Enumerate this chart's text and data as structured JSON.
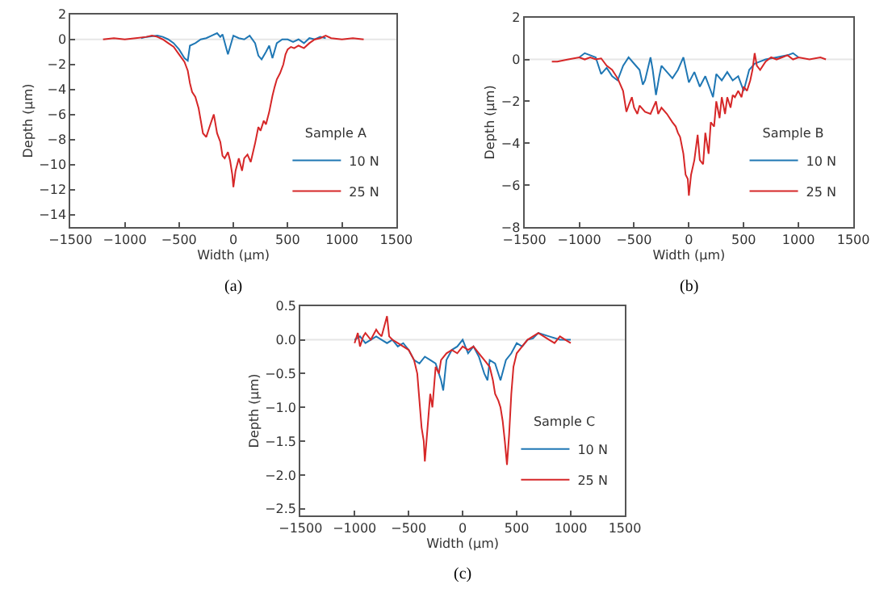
{
  "chart_data": [
    {
      "type": "line",
      "xlabel": "Width (μm)",
      "ylabel": "Depth (μm)",
      "legend_title": "Sample A",
      "legend": "bottom right",
      "grid": false,
      "marker": "none",
      "line_style": "solid",
      "xlim": [
        -1500,
        1500
      ],
      "xticks": [
        -1500,
        -1000,
        -500,
        0,
        500,
        1000,
        1500
      ],
      "ylim": [
        -15,
        2
      ],
      "yticks": [
        -14,
        -12,
        -10,
        -8,
        -6,
        -4,
        -2,
        0,
        2
      ],
      "ref_lines": [
        {
          "axis": "y",
          "value": 0,
          "label": null,
          "color": "#e6e6e6"
        }
      ],
      "annotations": [
        "(a)"
      ],
      "series": [
        {
          "name": "10 N",
          "color": "#1f77b4",
          "x": [
            -850,
            -800,
            -700,
            -650,
            -600,
            -550,
            -500,
            -450,
            -420,
            -400,
            -350,
            -300,
            -250,
            -200,
            -150,
            -120,
            -100,
            -50,
            0,
            50,
            100,
            150,
            200,
            230,
            260,
            300,
            330,
            360,
            400,
            450,
            500,
            550,
            600,
            650,
            700,
            750,
            800,
            850
          ],
          "values": [
            0.1,
            0.2,
            0.3,
            0.2,
            0,
            -0.3,
            -0.8,
            -1.5,
            -1.7,
            -0.5,
            -0.3,
            0,
            0.1,
            0.3,
            0.5,
            0.2,
            0.4,
            -1.2,
            0.3,
            0.1,
            0,
            0.3,
            -0.3,
            -1.3,
            -1.6,
            -1,
            -0.5,
            -1.5,
            -0.3,
            0,
            0,
            -0.2,
            0,
            -0.3,
            0.1,
            0,
            0.2,
            0.1
          ]
        },
        {
          "name": "25 N",
          "color": "#d62728",
          "x": [
            -1200,
            -1100,
            -1000,
            -900,
            -800,
            -750,
            -700,
            -650,
            -600,
            -550,
            -500,
            -450,
            -420,
            -400,
            -380,
            -350,
            -320,
            -300,
            -280,
            -250,
            -220,
            -200,
            -180,
            -150,
            -120,
            -100,
            -80,
            -50,
            -30,
            -10,
            0,
            20,
            50,
            80,
            100,
            130,
            160,
            200,
            230,
            250,
            280,
            300,
            330,
            360,
            380,
            400,
            430,
            460,
            480,
            500,
            530,
            560,
            600,
            650,
            700,
            750,
            800,
            850,
            900,
            1000,
            1100,
            1200
          ],
          "values": [
            0,
            0.1,
            0,
            0.1,
            0.2,
            0.3,
            0.2,
            0,
            -0.3,
            -0.6,
            -1.2,
            -1.8,
            -2.5,
            -3.5,
            -4.2,
            -4.6,
            -5.5,
            -6.5,
            -7.5,
            -7.8,
            -7,
            -6.5,
            -6,
            -7.5,
            -8.2,
            -9.3,
            -9.5,
            -9,
            -9.7,
            -10.8,
            -11.8,
            -10.5,
            -9.5,
            -10.5,
            -9.5,
            -9.2,
            -9.8,
            -8.3,
            -7,
            -7.3,
            -6.5,
            -6.8,
            -5.8,
            -4.5,
            -3.8,
            -3.2,
            -2.7,
            -2,
            -1.2,
            -0.8,
            -0.6,
            -0.7,
            -0.5,
            -0.7,
            -0.3,
            0,
            0.1,
            0.3,
            0.1,
            0,
            0.1,
            0
          ]
        }
      ]
    },
    {
      "type": "line",
      "xlabel": "Width (μm)",
      "ylabel": "Depth (μm)",
      "legend_title": "Sample B",
      "legend": "bottom right",
      "grid": false,
      "marker": "none",
      "line_style": "solid",
      "xlim": [
        -1500,
        1500
      ],
      "xticks": [
        -1500,
        -1000,
        -500,
        0,
        500,
        1000,
        1500
      ],
      "ylim": [
        -8,
        2
      ],
      "yticks": [
        -8,
        -6,
        -4,
        -2,
        0,
        2
      ],
      "ref_lines": [
        {
          "axis": "y",
          "value": 0,
          "label": null,
          "color": "#e6e6e6"
        }
      ],
      "annotations": [
        "(b)"
      ],
      "series": [
        {
          "name": "10 N",
          "color": "#1f77b4",
          "x": [
            -1000,
            -950,
            -900,
            -850,
            -800,
            -750,
            -700,
            -650,
            -600,
            -550,
            -500,
            -450,
            -420,
            -400,
            -350,
            -330,
            -300,
            -270,
            -250,
            -200,
            -150,
            -100,
            -50,
            0,
            50,
            100,
            150,
            200,
            220,
            250,
            300,
            350,
            400,
            450,
            500,
            550,
            600,
            650,
            700,
            800,
            900,
            950,
            1000
          ],
          "values": [
            0.1,
            0.3,
            0.2,
            0.1,
            -0.7,
            -0.4,
            -0.8,
            -1,
            -0.3,
            0.1,
            -0.2,
            -0.5,
            -1.2,
            -1,
            0.1,
            -0.5,
            -1.7,
            -0.8,
            -0.3,
            -0.6,
            -0.9,
            -0.5,
            0.1,
            -1.1,
            -0.6,
            -1.3,
            -0.8,
            -1.5,
            -1.8,
            -0.7,
            -1,
            -0.6,
            -1,
            -0.8,
            -1.5,
            -0.5,
            -0.2,
            -0.1,
            0,
            0.1,
            0.2,
            0.3,
            0.1
          ]
        },
        {
          "name": "25 N",
          "color": "#d62728",
          "x": [
            -1250,
            -1200,
            -1100,
            -1000,
            -950,
            -900,
            -850,
            -800,
            -750,
            -700,
            -650,
            -600,
            -570,
            -550,
            -520,
            -500,
            -470,
            -450,
            -400,
            -350,
            -300,
            -280,
            -250,
            -200,
            -150,
            -120,
            -100,
            -80,
            -50,
            -30,
            -10,
            0,
            20,
            50,
            80,
            100,
            130,
            150,
            180,
            200,
            230,
            250,
            280,
            300,
            330,
            350,
            380,
            400,
            420,
            450,
            480,
            500,
            530,
            560,
            580,
            600,
            620,
            650,
            700,
            750,
            800,
            850,
            900,
            950,
            1000,
            1100,
            1200,
            1250
          ],
          "values": [
            -0.1,
            -0.1,
            0,
            0.1,
            0,
            0.1,
            0,
            0.05,
            -0.3,
            -0.5,
            -0.9,
            -1.5,
            -2.5,
            -2.2,
            -1.8,
            -2.3,
            -2.6,
            -2.2,
            -2.5,
            -2.6,
            -2,
            -2.6,
            -2.3,
            -2.6,
            -3,
            -3.2,
            -3.5,
            -3.7,
            -4.5,
            -5.5,
            -5.7,
            -6.5,
            -5.5,
            -4.8,
            -3.6,
            -4.8,
            -5,
            -3.5,
            -4.5,
            -3,
            -3.2,
            -2,
            -2.8,
            -1.8,
            -2.6,
            -1.8,
            -2.3,
            -1.7,
            -1.8,
            -1.5,
            -1.8,
            -1.3,
            -1.5,
            -1,
            -0.5,
            0.3,
            -0.3,
            -0.5,
            -0.1,
            0.1,
            0,
            0.1,
            0.2,
            0,
            0.1,
            0,
            0.1,
            0
          ]
        }
      ]
    },
    {
      "type": "line",
      "xlabel": "Width (μm)",
      "ylabel": "Depth (μm)",
      "legend_title": "Sample C",
      "legend": "bottom right",
      "grid": false,
      "marker": "none",
      "line_style": "solid",
      "xlim": [
        -1500,
        1500
      ],
      "xticks": [
        -1500,
        -1000,
        -500,
        0,
        500,
        1000,
        1500
      ],
      "ylim": [
        -2.6,
        0.5
      ],
      "yticks": [
        {
          "value": -2.5,
          "label": "−2.5"
        },
        {
          "value": -2,
          "label": "−2.0"
        },
        {
          "value": -1.5,
          "label": "−1.5"
        },
        {
          "value": -1,
          "label": "−1.0"
        },
        {
          "value": -0.5,
          "label": "−0.5"
        },
        {
          "value": 0,
          "label": "0.0"
        },
        {
          "value": 0.5,
          "label": "0.5"
        }
      ],
      "ref_lines": [
        {
          "axis": "y",
          "value": 0,
          "label": null,
          "color": "#e6e6e6"
        }
      ],
      "annotations": [
        "(c)"
      ],
      "series": [
        {
          "name": "10 N",
          "color": "#1f77b4",
          "x": [
            -1000,
            -950,
            -900,
            -850,
            -800,
            -750,
            -700,
            -650,
            -600,
            -550,
            -500,
            -450,
            -400,
            -350,
            -300,
            -250,
            -200,
            -180,
            -150,
            -100,
            -50,
            0,
            50,
            100,
            150,
            200,
            230,
            250,
            300,
            350,
            400,
            450,
            500,
            550,
            600,
            650,
            700,
            800,
            900,
            1000
          ],
          "values": [
            0,
            0.05,
            -0.05,
            0,
            0.05,
            0,
            -0.05,
            0,
            -0.1,
            -0.05,
            -0.15,
            -0.3,
            -0.35,
            -0.25,
            -0.3,
            -0.35,
            -0.6,
            -0.75,
            -0.3,
            -0.15,
            -0.1,
            0,
            -0.2,
            -0.1,
            -0.25,
            -0.5,
            -0.6,
            -0.3,
            -0.35,
            -0.6,
            -0.3,
            -0.2,
            -0.05,
            -0.1,
            0,
            0.02,
            0.1,
            0.05,
            0,
            0
          ]
        },
        {
          "name": "25 N",
          "color": "#d62728",
          "x": [
            -1000,
            -970,
            -950,
            -920,
            -900,
            -850,
            -800,
            -780,
            -750,
            -700,
            -680,
            -650,
            -600,
            -550,
            -500,
            -450,
            -420,
            -400,
            -380,
            -360,
            -350,
            -330,
            -300,
            -280,
            -250,
            -220,
            -200,
            -150,
            -100,
            -50,
            0,
            50,
            100,
            150,
            200,
            250,
            280,
            300,
            330,
            350,
            370,
            390,
            410,
            430,
            450,
            470,
            500,
            550,
            600,
            650,
            700,
            750,
            800,
            850,
            900,
            950,
            1000
          ],
          "values": [
            -0.05,
            0.1,
            -0.1,
            0.05,
            0.1,
            0,
            0.15,
            0.1,
            0.05,
            0.35,
            0.05,
            0,
            -0.05,
            -0.1,
            -0.15,
            -0.3,
            -0.5,
            -0.9,
            -1.3,
            -1.5,
            -1.8,
            -1.4,
            -0.8,
            -1,
            -0.4,
            -0.5,
            -0.3,
            -0.2,
            -0.15,
            -0.2,
            -0.1,
            -0.15,
            -0.1,
            -0.2,
            -0.3,
            -0.4,
            -0.6,
            -0.8,
            -0.9,
            -1,
            -1.2,
            -1.5,
            -1.85,
            -1.4,
            -0.8,
            -0.4,
            -0.2,
            -0.1,
            0,
            0.05,
            0.1,
            0.05,
            0,
            -0.05,
            0.05,
            0,
            -0.05
          ]
        }
      ]
    }
  ]
}
